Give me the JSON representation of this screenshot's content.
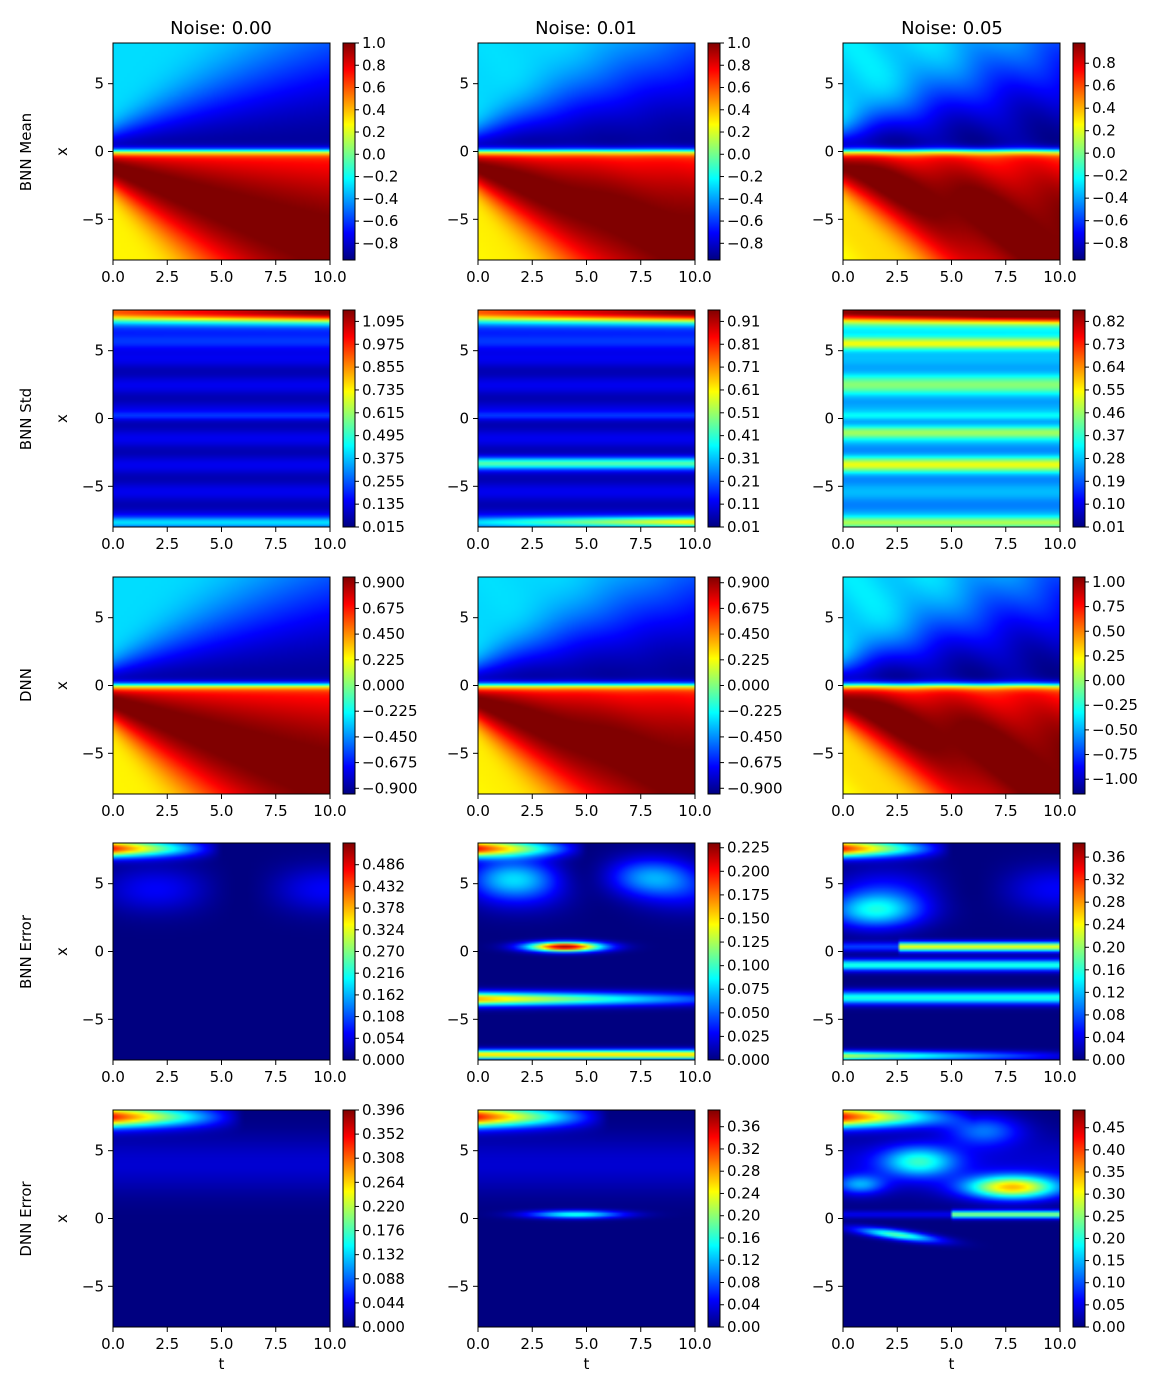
{
  "column_titles": [
    "Noise: 0.00",
    "Noise: 0.01",
    "Noise: 0.05"
  ],
  "row_labels": [
    "BNN Mean",
    "BNN Std",
    "DNN",
    "BNN Error",
    "DNN Error"
  ],
  "chart_data": {
    "type": "heatmap",
    "colormap": "jet",
    "xlabel": "t",
    "ylabel": "x",
    "xlim": [
      0,
      10
    ],
    "ylim": [
      -8,
      8
    ],
    "x_ticks": [
      "0.0",
      "2.5",
      "5.0",
      "7.5",
      "10.0"
    ],
    "y_ticks": [
      "5",
      "0",
      "−5"
    ],
    "panels": [
      [
        {
          "row": "BNN Mean",
          "column": "Noise: 0.00",
          "field": "mean",
          "noise": 0.0,
          "vmin": -0.95,
          "vmax": 1.0,
          "colorbar_ticks": [
            "1.0",
            "0.8",
            "0.6",
            "0.4",
            "0.2",
            "0.0",
            "−0.2",
            "−0.4",
            "−0.6",
            "−0.8"
          ]
        },
        {
          "row": "BNN Mean",
          "column": "Noise: 0.01",
          "field": "mean",
          "noise": 0.01,
          "vmin": -0.95,
          "vmax": 1.0,
          "colorbar_ticks": [
            "1.0",
            "0.8",
            "0.6",
            "0.4",
            "0.2",
            "0.0",
            "−0.2",
            "−0.4",
            "−0.6",
            "−0.8"
          ]
        },
        {
          "row": "BNN Mean",
          "column": "Noise: 0.05",
          "field": "mean",
          "noise": 0.05,
          "vmin": -0.95,
          "vmax": 0.98,
          "colorbar_ticks": [
            "0.8",
            "0.6",
            "0.4",
            "0.2",
            "0.0",
            "−0.2",
            "−0.4",
            "−0.6",
            "−0.8"
          ]
        }
      ],
      [
        {
          "row": "BNN Std",
          "column": "Noise: 0.00",
          "field": "std",
          "noise": 0.0,
          "vmin": 0.015,
          "vmax": 1.155,
          "colorbar_ticks": [
            "1.095",
            "0.975",
            "0.855",
            "0.735",
            "0.615",
            "0.495",
            "0.375",
            "0.255",
            "0.135",
            "0.015"
          ]
        },
        {
          "row": "BNN Std",
          "column": "Noise: 0.01",
          "field": "std",
          "noise": 0.01,
          "vmin": 0.01,
          "vmax": 0.96,
          "colorbar_ticks": [
            "0.91",
            "0.81",
            "0.71",
            "0.61",
            "0.51",
            "0.41",
            "0.31",
            "0.21",
            "0.11",
            "0.01"
          ]
        },
        {
          "row": "BNN Std",
          "column": "Noise: 0.05",
          "field": "std",
          "noise": 0.05,
          "vmin": 0.01,
          "vmax": 0.865,
          "colorbar_ticks": [
            "0.82",
            "0.73",
            "0.64",
            "0.55",
            "0.46",
            "0.37",
            "0.28",
            "0.19",
            "0.10",
            "0.01"
          ]
        }
      ],
      [
        {
          "row": "DNN",
          "column": "Noise: 0.00",
          "field": "mean",
          "noise": 0.0,
          "vmin": -0.95,
          "vmax": 0.95,
          "colorbar_ticks": [
            "0.900",
            "0.675",
            "0.450",
            "0.225",
            "0.000",
            "−0.225",
            "−0.450",
            "−0.675",
            "−0.900"
          ]
        },
        {
          "row": "DNN",
          "column": "Noise: 0.01",
          "field": "mean",
          "noise": 0.01,
          "vmin": -0.95,
          "vmax": 0.95,
          "colorbar_ticks": [
            "0.900",
            "0.675",
            "0.450",
            "0.225",
            "0.000",
            "−0.225",
            "−0.450",
            "−0.675",
            "−0.900"
          ]
        },
        {
          "row": "DNN",
          "column": "Noise: 0.05",
          "field": "mean",
          "noise": 0.05,
          "vmin": -1.15,
          "vmax": 1.05,
          "colorbar_ticks": [
            "1.00",
            "0.75",
            "0.50",
            "0.25",
            "0.00",
            "−0.25",
            "−0.50",
            "−0.75",
            "−1.00"
          ]
        }
      ],
      [
        {
          "row": "BNN Error",
          "column": "Noise: 0.00",
          "field": "bnn_error",
          "noise": 0.0,
          "vmin": 0.0,
          "vmax": 0.54,
          "colorbar_ticks": [
            "0.486",
            "0.432",
            "0.378",
            "0.324",
            "0.270",
            "0.216",
            "0.162",
            "0.108",
            "0.054",
            "0.000"
          ]
        },
        {
          "row": "BNN Error",
          "column": "Noise: 0.01",
          "field": "bnn_error",
          "noise": 0.01,
          "vmin": 0.0,
          "vmax": 0.23,
          "colorbar_ticks": [
            "0.225",
            "0.200",
            "0.175",
            "0.150",
            "0.125",
            "0.100",
            "0.075",
            "0.050",
            "0.025",
            "0.000"
          ]
        },
        {
          "row": "BNN Error",
          "column": "Noise: 0.05",
          "field": "bnn_error",
          "noise": 0.05,
          "vmin": 0.0,
          "vmax": 0.385,
          "colorbar_ticks": [
            "0.36",
            "0.32",
            "0.28",
            "0.24",
            "0.20",
            "0.16",
            "0.12",
            "0.08",
            "0.04",
            "0.00"
          ]
        }
      ],
      [
        {
          "row": "DNN Error",
          "column": "Noise: 0.00",
          "field": "dnn_error",
          "noise": 0.0,
          "vmin": 0.0,
          "vmax": 0.396,
          "colorbar_ticks": [
            "0.396",
            "0.352",
            "0.308",
            "0.264",
            "0.220",
            "0.176",
            "0.132",
            "0.088",
            "0.044",
            "0.000"
          ]
        },
        {
          "row": "DNN Error",
          "column": "Noise: 0.01",
          "field": "dnn_error",
          "noise": 0.01,
          "vmin": 0.0,
          "vmax": 0.39,
          "colorbar_ticks": [
            "0.36",
            "0.32",
            "0.28",
            "0.24",
            "0.20",
            "0.16",
            "0.12",
            "0.08",
            "0.04",
            "0.00"
          ]
        },
        {
          "row": "DNN Error",
          "column": "Noise: 0.05",
          "field": "dnn_error",
          "noise": 0.05,
          "vmin": 0.0,
          "vmax": 0.49,
          "colorbar_ticks": [
            "0.45",
            "0.40",
            "0.35",
            "0.30",
            "0.25",
            "0.20",
            "0.15",
            "0.10",
            "0.05",
            "0.00"
          ]
        }
      ]
    ]
  }
}
